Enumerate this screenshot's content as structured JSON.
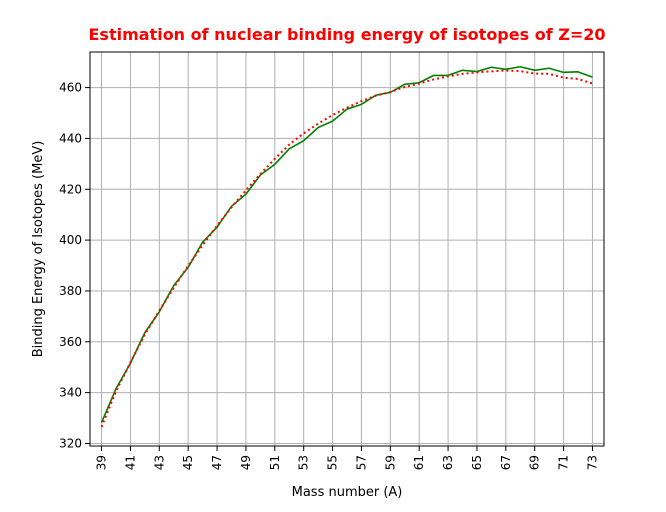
{
  "chart_data": {
    "type": "line",
    "title": "Estimation of nuclear binding energy of isotopes of Z=20",
    "title_color": "#ff0000",
    "xlabel": "Mass number (A)",
    "ylabel": "Binding Energy of Isotopes (MeV)",
    "xlim": [
      38.2,
      73.8
    ],
    "ylim": [
      319,
      474
    ],
    "xticks": [
      39,
      41,
      43,
      45,
      47,
      49,
      51,
      53,
      55,
      57,
      59,
      61,
      63,
      65,
      67,
      69,
      71,
      73
    ],
    "xtick_labels": [
      "39",
      "41",
      "43",
      "45",
      "47",
      "49",
      "51",
      "53",
      "55",
      "57",
      "59",
      "61",
      "63",
      "65",
      "67",
      "69",
      "71",
      "73"
    ],
    "yticks": [
      320,
      340,
      360,
      380,
      400,
      420,
      440,
      460
    ],
    "ytick_labels": [
      "320",
      "340",
      "360",
      "380",
      "400",
      "420",
      "440",
      "460"
    ],
    "grid": true,
    "x": [
      39,
      40,
      41,
      42,
      43,
      44,
      45,
      46,
      47,
      48,
      49,
      50,
      51,
      52,
      53,
      54,
      55,
      56,
      57,
      58,
      59,
      60,
      61,
      62,
      63,
      64,
      65,
      66,
      67,
      68,
      69,
      70,
      71,
      72,
      73
    ],
    "series": [
      {
        "style": "solid",
        "color": "#008000",
        "values": [
          328.2,
          341.5,
          351.6,
          363.6,
          371.8,
          382.1,
          389.3,
          399.2,
          405.1,
          413.3,
          418.1,
          425.6,
          429.8,
          435.9,
          439.1,
          444.3,
          446.8,
          451.5,
          453.4,
          457.0,
          458.1,
          461.3,
          461.9,
          464.8,
          464.8,
          466.8,
          466.3,
          468.0,
          467.2,
          468.2,
          466.8,
          467.6,
          466.0,
          466.2,
          464.1
        ]
      },
      {
        "style": "dotted",
        "color": "#ff0000",
        "values": [
          326.5,
          340.5,
          351.9,
          362.9,
          372.2,
          381.3,
          389.9,
          398.0,
          405.7,
          412.9,
          419.6,
          426.0,
          432.0,
          437.6,
          442.0,
          445.8,
          449.2,
          452.1,
          454.7,
          456.8,
          458.3,
          460.2,
          461.6,
          463.2,
          464.4,
          465.4,
          466.0,
          466.4,
          466.7,
          466.5,
          465.5,
          465.4,
          463.9,
          463.4,
          461.6
        ]
      }
    ]
  }
}
